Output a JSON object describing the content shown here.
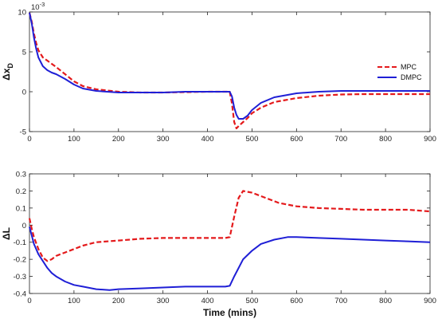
{
  "chart_data": [
    {
      "type": "line",
      "title": "",
      "xlabel": "",
      "ylabel_main": "Δx",
      "ylabel_sub": "D",
      "exponent_label": "10",
      "exponent_power": "-3",
      "xlim": [
        0,
        900
      ],
      "ylim": [
        -5,
        10
      ],
      "xticks": [
        0,
        100,
        200,
        300,
        400,
        500,
        600,
        700,
        800,
        900
      ],
      "yticks": [
        -5,
        0,
        5,
        10
      ],
      "grid": false,
      "legend_position": "right",
      "series": [
        {
          "name": "MPC",
          "color": "#e41a1c",
          "style": "dashed",
          "x": [
            0,
            5,
            10,
            15,
            20,
            30,
            40,
            50,
            60,
            80,
            100,
            120,
            150,
            200,
            250,
            300,
            350,
            400,
            440,
            450,
            455,
            460,
            465,
            470,
            480,
            490,
            500,
            520,
            550,
            600,
            650,
            700,
            750,
            800,
            850,
            900
          ],
          "y": [
            9.9,
            8.8,
            7.3,
            6.1,
            5.2,
            4.3,
            3.9,
            3.5,
            3.1,
            2.2,
            1.3,
            0.7,
            0.3,
            0.0,
            -0.1,
            -0.1,
            -0.05,
            0.0,
            0.0,
            0.0,
            -1.5,
            -3.8,
            -4.6,
            -4.3,
            -3.8,
            -3.3,
            -2.7,
            -2.0,
            -1.3,
            -0.8,
            -0.5,
            -0.35,
            -0.3,
            -0.3,
            -0.3,
            -0.3
          ]
        },
        {
          "name": "DMPC",
          "color": "#1f1fd6",
          "style": "solid",
          "x": [
            0,
            5,
            10,
            15,
            20,
            30,
            40,
            50,
            60,
            80,
            100,
            120,
            150,
            200,
            250,
            300,
            350,
            400,
            440,
            450,
            455,
            460,
            465,
            470,
            480,
            490,
            500,
            520,
            550,
            600,
            650,
            700,
            750,
            800,
            850,
            900
          ],
          "y": [
            9.9,
            8.6,
            6.8,
            5.4,
            4.3,
            3.2,
            2.7,
            2.4,
            2.2,
            1.6,
            0.9,
            0.4,
            0.1,
            -0.1,
            -0.1,
            -0.1,
            0.0,
            0.0,
            0.0,
            0.0,
            -0.6,
            -2.0,
            -2.9,
            -3.4,
            -3.4,
            -3.0,
            -2.3,
            -1.4,
            -0.7,
            -0.2,
            0.0,
            0.1,
            0.1,
            0.1,
            0.1,
            0.1
          ]
        }
      ]
    },
    {
      "type": "line",
      "title": "",
      "xlabel": "Time (mins)",
      "ylabel": "ΔL",
      "xlim": [
        0,
        900
      ],
      "ylim": [
        -0.4,
        0.3
      ],
      "xticks": [
        0,
        100,
        200,
        300,
        400,
        500,
        600,
        700,
        800,
        900
      ],
      "yticks": [
        -0.4,
        -0.3,
        -0.2,
        -0.1,
        0,
        0.1,
        0.2,
        0.3
      ],
      "ytick_labels": [
        "-0.4",
        "-0.3",
        "-0.2",
        "-0.1",
        "0",
        "0.1",
        "0.2",
        "0.3"
      ],
      "grid": false,
      "series": [
        {
          "name": "MPC",
          "color": "#e41a1c",
          "style": "dashed",
          "x": [
            0,
            5,
            10,
            20,
            30,
            40,
            50,
            60,
            70,
            80,
            100,
            120,
            150,
            200,
            250,
            300,
            350,
            400,
            440,
            450,
            460,
            470,
            480,
            500,
            520,
            540,
            560,
            600,
            650,
            700,
            750,
            800,
            850,
            900
          ],
          "y": [
            0.04,
            -0.02,
            -0.07,
            -0.14,
            -0.19,
            -0.21,
            -0.2,
            -0.18,
            -0.17,
            -0.16,
            -0.14,
            -0.12,
            -0.1,
            -0.09,
            -0.08,
            -0.075,
            -0.075,
            -0.075,
            -0.075,
            -0.07,
            0.05,
            0.16,
            0.2,
            0.19,
            0.17,
            0.15,
            0.13,
            0.11,
            0.1,
            0.095,
            0.09,
            0.09,
            0.09,
            0.08
          ]
        },
        {
          "name": "DMPC",
          "color": "#1f1fd6",
          "style": "solid",
          "x": [
            0,
            5,
            10,
            20,
            30,
            40,
            50,
            60,
            80,
            100,
            120,
            150,
            180,
            200,
            250,
            300,
            350,
            400,
            440,
            450,
            460,
            470,
            480,
            500,
            520,
            550,
            580,
            600,
            650,
            700,
            750,
            800,
            850,
            900
          ],
          "y": [
            -0.01,
            -0.06,
            -0.11,
            -0.17,
            -0.21,
            -0.25,
            -0.28,
            -0.3,
            -0.33,
            -0.35,
            -0.36,
            -0.375,
            -0.38,
            -0.375,
            -0.37,
            -0.365,
            -0.36,
            -0.36,
            -0.36,
            -0.355,
            -0.3,
            -0.25,
            -0.2,
            -0.15,
            -0.11,
            -0.085,
            -0.07,
            -0.07,
            -0.075,
            -0.08,
            -0.085,
            -0.09,
            -0.095,
            -0.1
          ]
        }
      ]
    }
  ]
}
